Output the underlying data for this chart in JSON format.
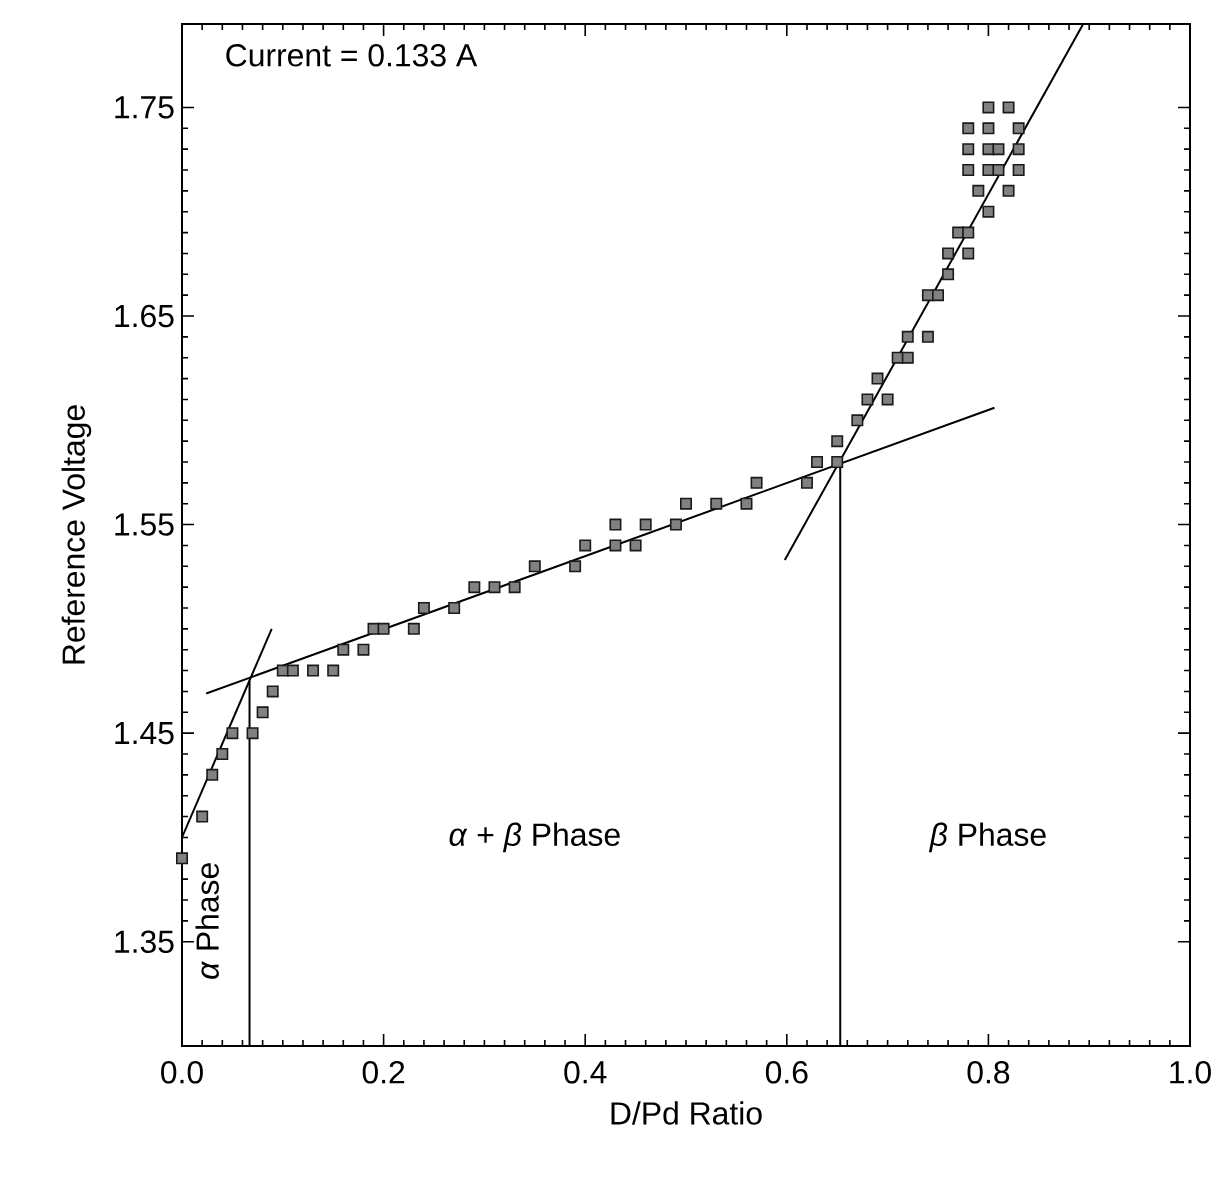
{
  "chart_data": {
    "type": "scatter",
    "xlabel": "D/Pd Ratio",
    "ylabel": "Reference Voltage",
    "annotations": [
      "Current = 0.133 A",
      "*α* + *β* Phase",
      "*β* Phase",
      "*α* Phase"
    ],
    "xlim": [
      0,
      1.0
    ],
    "ylim": [
      1.3,
      1.79
    ],
    "xticks": [
      {
        "value": 0,
        "label": "0.0"
      },
      0.2,
      0.4,
      0.6,
      0.8,
      {
        "value": 1.0,
        "label": "1.0"
      }
    ],
    "yticks": [
      1.35,
      1.45,
      1.55,
      1.65,
      1.75
    ],
    "grid": false,
    "series": [
      {
        "color": "#1a1a1a",
        "marker": "square",
        "x": [
          0.0,
          0.02,
          0.03,
          0.04,
          0.05,
          0.07,
          0.08,
          0.09,
          0.1,
          0.11,
          0.13,
          0.15,
          0.16,
          0.18,
          0.19,
          0.2,
          0.23,
          0.24,
          0.27,
          0.29,
          0.31,
          0.33,
          0.35,
          0.39,
          0.4,
          0.43,
          0.45,
          0.43,
          0.46,
          0.49,
          0.5,
          0.53,
          0.56,
          0.57,
          0.62,
          0.63,
          0.65,
          0.65,
          0.67,
          0.68,
          0.7,
          0.69,
          0.71,
          0.72,
          0.72,
          0.74,
          0.74,
          0.75,
          0.76,
          0.76,
          0.78,
          0.77,
          0.78,
          0.8,
          0.79,
          0.82,
          0.78,
          0.8,
          0.81,
          0.83,
          0.78,
          0.8,
          0.81,
          0.83,
          0.78,
          0.8,
          0.83,
          0.8,
          0.82
        ],
        "values": [
          1.39,
          1.41,
          1.43,
          1.44,
          1.45,
          1.45,
          1.46,
          1.47,
          1.48,
          1.48,
          1.48,
          1.48,
          1.49,
          1.49,
          1.5,
          1.5,
          1.5,
          1.51,
          1.51,
          1.52,
          1.52,
          1.52,
          1.53,
          1.53,
          1.54,
          1.54,
          1.54,
          1.55,
          1.55,
          1.55,
          1.56,
          1.56,
          1.56,
          1.57,
          1.57,
          1.58,
          1.58,
          1.59,
          1.6,
          1.61,
          1.61,
          1.62,
          1.63,
          1.63,
          1.64,
          1.64,
          1.66,
          1.66,
          1.67,
          1.68,
          1.68,
          1.69,
          1.69,
          1.7,
          1.71,
          1.71,
          1.72,
          1.72,
          1.72,
          1.72,
          1.73,
          1.73,
          1.73,
          1.73,
          1.74,
          1.74,
          1.74,
          1.75,
          1.75
        ]
      },
      {
        "type": "line",
        "marker": "none",
        "color": "#000000",
        "x": [
          0.0,
          0.089
        ],
        "values": [
          1.4,
          1.5
        ]
      },
      {
        "type": "line",
        "marker": "none",
        "color": "#000000",
        "x": [
          0.024,
          0.806
        ],
        "values": [
          1.469,
          1.606
        ]
      },
      {
        "type": "line",
        "marker": "none",
        "color": "#000000",
        "x": [
          0.598,
          0.894
        ],
        "values": [
          1.533,
          1.79
        ]
      },
      {
        "type": "line",
        "marker": "none",
        "color": "#000000",
        "x": [
          0.067,
          0.067
        ],
        "values": [
          1.3,
          1.475
        ]
      },
      {
        "type": "line",
        "marker": "none",
        "color": "#000000",
        "x": [
          0.653,
          0.653
        ],
        "values": [
          1.3,
          1.579
        ]
      }
    ]
  }
}
